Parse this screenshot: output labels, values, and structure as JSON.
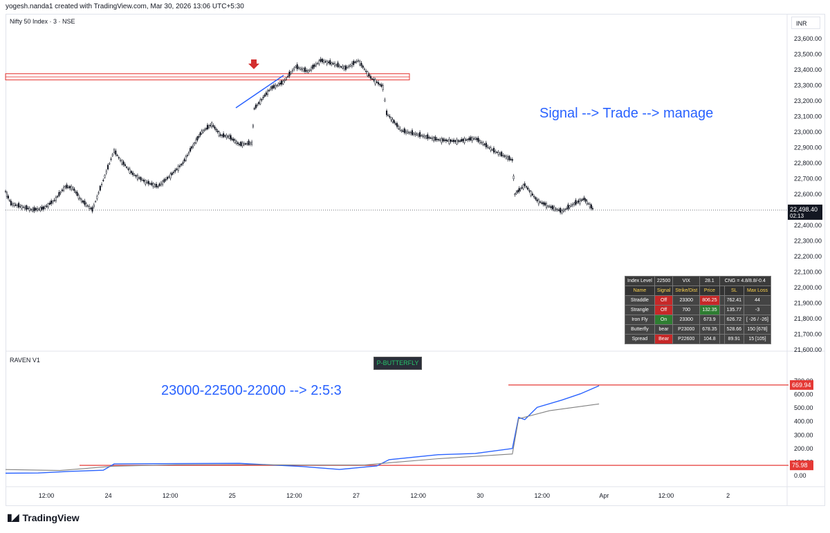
{
  "header": {
    "text": "yogesh.nanda1 created with TradingView.com, Mar 30, 2026 13:06 UTC+5:30"
  },
  "symbol": "Nifty 50 Index · 3 · NSE",
  "currency": "INR",
  "annotations": {
    "main": "Signal --> Trade --> manage",
    "ind": "23000-22500-22000 --> 2:5:3"
  },
  "indicator": {
    "name": "RAVEN V1",
    "badge": "P-BUTTERFLY"
  },
  "brand": "TradingView",
  "stats_table": {
    "row0": [
      "Index Level",
      "22500",
      "VIX",
      "28.1",
      "CNG = 4.8/8.8/-0.4"
    ],
    "headers": [
      "Name",
      "Signal",
      "Strike/Dist",
      "Price",
      "",
      "SL",
      "Max Loss"
    ],
    "rows": [
      [
        "Straddle",
        "Off",
        "23300",
        "806.25",
        "",
        "762.41",
        "44"
      ],
      [
        "Strangle",
        "Off",
        "700",
        "132.35",
        "",
        "135.77",
        "-3"
      ],
      [
        "Iron Fly",
        "On",
        "23300",
        "673.9",
        "",
        "626.72",
        "[ -26 / -26]"
      ],
      [
        "Butterfly",
        "bear",
        "P23000",
        "678.35",
        "",
        "528.66",
        "150 [678]"
      ],
      [
        "Spread",
        "Bear",
        "P22600",
        "104.8",
        "",
        "89.91",
        "15 [105]"
      ]
    ]
  },
  "chart_data": [
    {
      "type": "candlestick",
      "title": "Nifty 50 Index · 3 · NSE",
      "y_ticks": [
        23600,
        23500,
        23400,
        23300,
        23200,
        23100,
        23000,
        22900,
        22800,
        22700,
        22600,
        22500,
        22400,
        22300,
        22200,
        22100,
        22000,
        21900,
        21800,
        21700,
        21600
      ],
      "y_tick_labels": [
        "23,600.00",
        "23,500.00",
        "23,400.00",
        "23,300.00",
        "23,200.00",
        "23,100.00",
        "23,000.00",
        "22,900.00",
        "22,800.00",
        "22,700.00",
        "22,600.00",
        "22,500.00",
        "22,400.00",
        "22,300.00",
        "22,200.00",
        "22,100.00",
        "22,000.00",
        "21,900.00",
        "21,800.00",
        "21,700.00",
        "21,600.00"
      ],
      "ylim": [
        21560,
        23660
      ],
      "x_tick_labels": [
        "12:00",
        "24",
        "12:00",
        "25",
        "12:00",
        "27",
        "12:00",
        "30",
        "12:00",
        "Apr",
        "12:00",
        "2"
      ],
      "last_price": "22,498.40",
      "countdown": "02:13",
      "zone": [
        23335,
        23375
      ],
      "close_path": [
        {
          "d": 0,
          "v": 22620
        },
        {
          "d": 0.05,
          "v": 22540
        },
        {
          "d": 0.15,
          "v": 22520
        },
        {
          "d": 0.25,
          "v": 22500
        },
        {
          "d": 0.35,
          "v": 22510
        },
        {
          "d": 0.45,
          "v": 22560
        },
        {
          "d": 0.55,
          "v": 22650
        },
        {
          "d": 0.62,
          "v": 22640
        },
        {
          "d": 0.7,
          "v": 22560
        },
        {
          "d": 0.8,
          "v": 22500
        },
        {
          "d": 1.0,
          "v": 22880
        },
        {
          "d": 1.05,
          "v": 22820
        },
        {
          "d": 1.15,
          "v": 22730
        },
        {
          "d": 1.25,
          "v": 22680
        },
        {
          "d": 1.35,
          "v": 22650
        },
        {
          "d": 1.45,
          "v": 22720
        },
        {
          "d": 1.55,
          "v": 22800
        },
        {
          "d": 1.62,
          "v": 22900
        },
        {
          "d": 1.7,
          "v": 23000
        },
        {
          "d": 1.78,
          "v": 23050
        },
        {
          "d": 1.85,
          "v": 22980
        },
        {
          "d": 1.92,
          "v": 22970
        },
        {
          "d": 2.0,
          "v": 22920
        },
        {
          "d": 2.1,
          "v": 22930
        },
        {
          "d": 2.12,
          "v": 23150
        },
        {
          "d": 2.25,
          "v": 23280
        },
        {
          "d": 2.35,
          "v": 23320
        },
        {
          "d": 2.45,
          "v": 23420
        },
        {
          "d": 2.55,
          "v": 23390
        },
        {
          "d": 2.65,
          "v": 23460
        },
        {
          "d": 2.75,
          "v": 23440
        },
        {
          "d": 2.85,
          "v": 23410
        },
        {
          "d": 2.95,
          "v": 23460
        },
        {
          "d": 3.05,
          "v": 23350
        },
        {
          "d": 3.15,
          "v": 23290
        },
        {
          "d": 3.18,
          "v": 23120
        },
        {
          "d": 3.3,
          "v": 23010
        },
        {
          "d": 3.45,
          "v": 22980
        },
        {
          "d": 3.6,
          "v": 22950
        },
        {
          "d": 3.75,
          "v": 22940
        },
        {
          "d": 3.9,
          "v": 22960
        },
        {
          "d": 4.05,
          "v": 22880
        },
        {
          "d": 4.2,
          "v": 22820
        },
        {
          "d": 4.22,
          "v": 22600
        },
        {
          "d": 4.3,
          "v": 22660
        },
        {
          "d": 4.4,
          "v": 22560
        },
        {
          "d": 4.5,
          "v": 22520
        },
        {
          "d": 4.6,
          "v": 22490
        },
        {
          "d": 4.7,
          "v": 22540
        },
        {
          "d": 4.78,
          "v": 22570
        },
        {
          "d": 4.86,
          "v": 22498
        }
      ]
    },
    {
      "type": "line",
      "title": "RAVEN V1",
      "y_ticks": [
        700,
        600,
        500,
        400,
        300,
        200,
        100,
        0
      ],
      "y_tick_labels": [
        "700.00",
        "600.00",
        "500.00",
        "400.00",
        "300.00",
        "200.00",
        "100.00",
        "0.00"
      ],
      "ylim": [
        -40,
        730
      ],
      "levels": [
        669.94,
        75.98
      ],
      "level_labels": [
        "669.94",
        "75.98"
      ],
      "series": [
        {
          "color": "#2962ff",
          "points": [
            {
              "d": 0,
              "v": 30
            },
            {
              "d": 0.3,
              "v": 10
            },
            {
              "d": 0.6,
              "v": 20
            },
            {
              "d": 0.9,
              "v": 50
            },
            {
              "d": 1.0,
              "v": 75
            },
            {
              "d": 1.5,
              "v": 80
            },
            {
              "d": 2.0,
              "v": 85
            },
            {
              "d": 2.5,
              "v": 65
            },
            {
              "d": 2.8,
              "v": 60
            },
            {
              "d": 3.1,
              "v": 75
            },
            {
              "d": 3.2,
              "v": 110
            },
            {
              "d": 3.6,
              "v": 140
            },
            {
              "d": 3.9,
              "v": 170
            },
            {
              "d": 4.2,
              "v": 210
            },
            {
              "d": 4.25,
              "v": 440
            },
            {
              "d": 4.3,
              "v": 400
            },
            {
              "d": 4.4,
              "v": 520
            },
            {
              "d": 4.6,
              "v": 570
            },
            {
              "d": 4.75,
              "v": 620
            },
            {
              "d": 4.9,
              "v": 670
            }
          ]
        },
        {
          "color": "#808080",
          "points": [
            {
              "d": 0,
              "v": 45
            },
            {
              "d": 0.5,
              "v": 38
            },
            {
              "d": 1.0,
              "v": 70
            },
            {
              "d": 1.5,
              "v": 80
            },
            {
              "d": 2.0,
              "v": 82
            },
            {
              "d": 2.5,
              "v": 78
            },
            {
              "d": 3.0,
              "v": 78
            },
            {
              "d": 3.2,
              "v": 95
            },
            {
              "d": 3.6,
              "v": 125
            },
            {
              "d": 4.2,
              "v": 160
            },
            {
              "d": 4.25,
              "v": 420
            },
            {
              "d": 4.5,
              "v": 480
            },
            {
              "d": 4.9,
              "v": 530
            }
          ]
        }
      ]
    }
  ]
}
